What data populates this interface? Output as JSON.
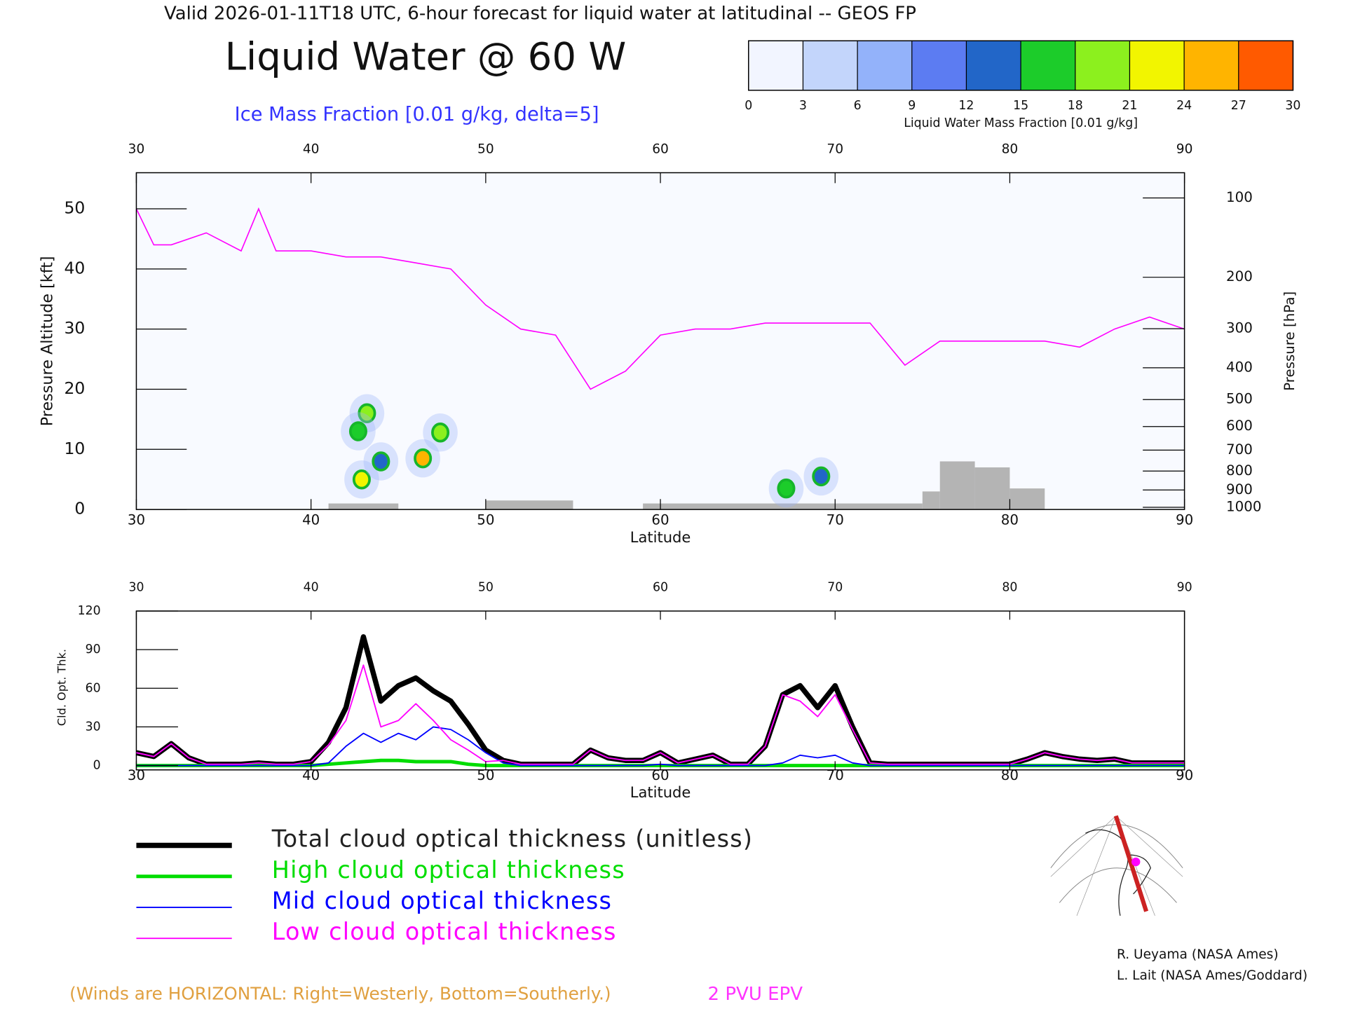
{
  "header": {
    "valid": "Valid 2026-01-11T18 UTC, 6-hour forecast for liquid water at latitudinal -- GEOS FP",
    "title": "Liquid Water @ 60 W",
    "subtitle": "Ice Mass Fraction [0.01 g/kg, delta=5]"
  },
  "chart_data": [
    {
      "type": "colorbar",
      "xlabel": "Liquid Water Mass Fraction [0.01 g/kg]",
      "xlim": [
        0,
        30
      ],
      "xticks": [
        0,
        3,
        6,
        9,
        12,
        15,
        18,
        21,
        24,
        27,
        30
      ],
      "colors": [
        "#f2f5ff",
        "#c3d5fb",
        "#93b2fa",
        "#5c7cf2",
        "#2266c8",
        "#1ccc2a",
        "#8cf01e",
        "#f2f500",
        "#ffb400",
        "#ff5a00"
      ]
    },
    {
      "type": "cross-section",
      "xlabel": "Latitude",
      "ylabel": "Pressure Altitude [kft]",
      "y2label": "Pressure [hPa]",
      "xlim": [
        30,
        90
      ],
      "xticks": [
        30,
        40,
        50,
        60,
        70,
        80,
        90
      ],
      "ylim": [
        0,
        56
      ],
      "yticks": [
        0,
        10,
        20,
        30,
        40,
        50
      ],
      "y2scale": "pressure-altitude",
      "y2lim": [
        1013.25,
        78.6
      ],
      "y2ticks": [
        100,
        200,
        300,
        400,
        500,
        600,
        700,
        800,
        900,
        1000
      ],
      "series": [
        {
          "name": "2 PVU EPV",
          "color": "#ff00ff",
          "x": [
            30,
            31,
            32,
            34,
            36,
            37,
            38,
            40,
            42,
            44,
            46,
            48,
            50,
            52,
            54,
            56,
            58,
            60,
            62,
            64,
            66,
            68,
            70,
            72,
            74,
            76,
            78,
            80,
            82,
            84,
            86,
            88,
            90
          ],
          "values": [
            50,
            44,
            44,
            46,
            43,
            50,
            43,
            43,
            42,
            42,
            41,
            40,
            34,
            30,
            29,
            20,
            23,
            29,
            30,
            30,
            31,
            31,
            31,
            31,
            24,
            28,
            28,
            28,
            28,
            27,
            30,
            32,
            30
          ]
        }
      ],
      "terrain": {
        "color": "#b4b4b4",
        "bins": [
          30,
          41,
          45,
          50,
          55,
          59,
          75,
          76,
          78,
          80,
          82,
          90
        ],
        "values": [
          0,
          1,
          0,
          1.5,
          0,
          1,
          3,
          8,
          7,
          3.5,
          0
        ]
      },
      "liquid_water": {
        "x": [
          42.9,
          43.2,
          44,
          46.4,
          47.4,
          42.7,
          67.2,
          69.2
        ],
        "y": [
          5,
          16,
          8,
          8.5,
          12.8,
          13,
          3.5,
          5.5
        ],
        "values": [
          21,
          18,
          12,
          24,
          18,
          15,
          16,
          12
        ]
      }
    },
    {
      "type": "line",
      "xlabel": "Latitude",
      "ylabel": "Cld. Opt. Thk.",
      "xlim": [
        30,
        90
      ],
      "xticks": [
        30,
        40,
        50,
        60,
        70,
        80,
        90
      ],
      "ylim": [
        0,
        120
      ],
      "yticks": [
        0,
        30,
        60,
        90,
        120
      ],
      "x": [
        30,
        31,
        32,
        33,
        34,
        35,
        36,
        37,
        38,
        39,
        40,
        41,
        42,
        43,
        44,
        45,
        46,
        47,
        48,
        49,
        50,
        51,
        52,
        53,
        54,
        55,
        56,
        57,
        58,
        59,
        60,
        61,
        62,
        63,
        64,
        65,
        66,
        67,
        68,
        69,
        70,
        71,
        72,
        73,
        74,
        75,
        76,
        77,
        78,
        79,
        80,
        81,
        82,
        83,
        84,
        85,
        86,
        87,
        88,
        89,
        90
      ],
      "series": [
        {
          "name": "Total cloud optical thickness (unitless)",
          "color": "#000000",
          "values": [
            10,
            7,
            17,
            6,
            1,
            1,
            1,
            2,
            1,
            1,
            3,
            18,
            45,
            100,
            50,
            62,
            68,
            58,
            50,
            32,
            12,
            4,
            1,
            1,
            1,
            1,
            12,
            6,
            4,
            4,
            10,
            2,
            5,
            8,
            1,
            1,
            15,
            55,
            62,
            45,
            62,
            30,
            2,
            1,
            1,
            1,
            1,
            1,
            1,
            1,
            1,
            5,
            10,
            7,
            5,
            4,
            5,
            2,
            2,
            2,
            2
          ]
        },
        {
          "name": "High cloud optical thickness",
          "color": "#00dd00",
          "values": [
            0,
            0,
            0,
            0,
            0,
            0,
            0,
            0,
            0,
            0,
            0,
            1,
            2,
            3,
            4,
            4,
            3,
            3,
            3,
            1,
            0,
            0,
            0,
            0,
            0,
            0,
            0,
            0,
            0,
            0,
            0,
            0,
            0,
            0,
            0,
            0,
            0,
            0,
            0,
            0,
            0,
            0,
            0,
            0,
            0,
            0,
            0,
            0,
            0,
            0,
            0,
            0,
            0,
            0,
            0,
            0,
            0,
            0,
            0,
            0,
            0
          ]
        },
        {
          "name": "Mid cloud optical thickness",
          "color": "#0000ff",
          "values": [
            0,
            0,
            0,
            0,
            0,
            0,
            0,
            0,
            0,
            0,
            0,
            2,
            15,
            25,
            18,
            25,
            20,
            30,
            28,
            20,
            10,
            2,
            0,
            0,
            0,
            0,
            0,
            0,
            0,
            0,
            1,
            0,
            0,
            0,
            0,
            0,
            0,
            2,
            8,
            6,
            8,
            2,
            0,
            0,
            0,
            0,
            0,
            0,
            0,
            0,
            0,
            0,
            0,
            0,
            0,
            0,
            0,
            0,
            0,
            0,
            0
          ]
        },
        {
          "name": "Low cloud optical thickness",
          "color": "#ff00ff",
          "values": [
            10,
            7,
            17,
            6,
            1,
            1,
            1,
            2,
            1,
            1,
            3,
            16,
            35,
            78,
            30,
            35,
            48,
            35,
            20,
            12,
            3,
            4,
            1,
            1,
            1,
            1,
            12,
            6,
            4,
            4,
            10,
            2,
            5,
            8,
            1,
            1,
            15,
            55,
            50,
            38,
            55,
            28,
            2,
            1,
            1,
            1,
            1,
            1,
            1,
            1,
            1,
            5,
            10,
            7,
            5,
            4,
            5,
            2,
            2,
            2,
            2
          ]
        }
      ]
    }
  ],
  "footer": {
    "winds": "(Winds are HORIZONTAL: Right=Westerly, Bottom=Southerly.)",
    "credits": [
      "R. Ueyama (NASA Ames)",
      "L. Lait (NASA Ames/Goddard)"
    ]
  }
}
